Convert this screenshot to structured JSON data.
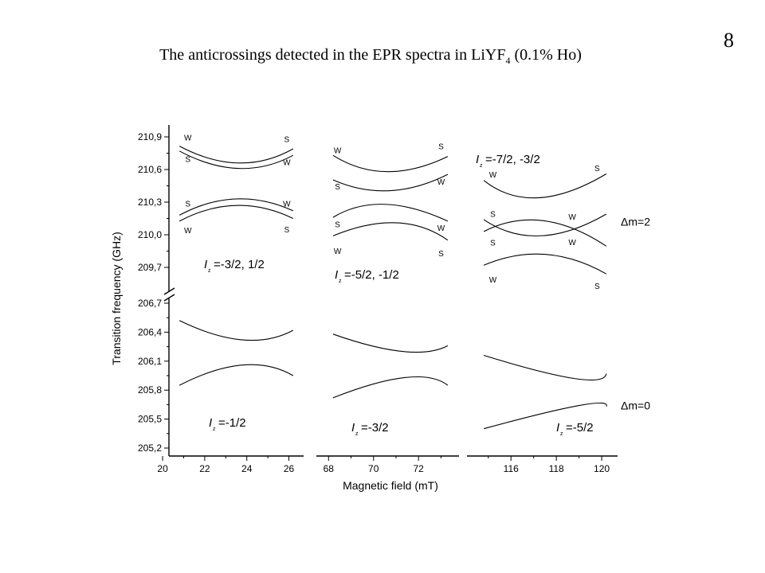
{
  "page": {
    "title_main": "The anticrossings detected in the EPR spectra in LiYF",
    "title_sub": "4",
    "title_tail": " (0.1% Ho)",
    "slide_number": "8"
  },
  "chart_data": {
    "type": "line",
    "ylabel": "Transition frequency (GHz)",
    "xlabel": "Magnetic field (mT)",
    "y_axis": {
      "upper_ticks": [
        209.7,
        210.0,
        210.3,
        210.6,
        210.9
      ],
      "upper_tick_labels": [
        "209,7",
        "210,0",
        "210,3",
        "210,6",
        "210,9"
      ],
      "lower_ticks": [
        205.2,
        205.5,
        205.8,
        206.1,
        206.4,
        206.7
      ],
      "lower_tick_labels": [
        "205,2",
        "205,5",
        "205,8",
        "206,1",
        "206,4",
        "206,7"
      ],
      "axis_break": true
    },
    "panels": [
      {
        "xlim": [
          20.3,
          26.7
        ],
        "xticks": [
          20,
          22,
          24,
          26
        ],
        "xtick_labels": [
          "20",
          "22",
          "24",
          "26"
        ],
        "upper_label": {
          "prefix": "I",
          "sub": "z",
          "text": "=-3/2, 1/2"
        },
        "lower_label": {
          "prefix": "I",
          "sub": "z",
          "text": "=-1/2"
        },
        "upper_series": [
          {
            "x": [
              20.8,
              23.6,
              26.2
            ],
            "y": [
              210.815,
              210.66,
              210.79
            ]
          },
          {
            "x": [
              20.8,
              23.6,
              26.2
            ],
            "y": [
              210.77,
              210.61,
              210.73
            ]
          },
          {
            "x": [
              20.8,
              23.5,
              26.2
            ],
            "y": [
              210.18,
              210.33,
              210.22
            ]
          },
          {
            "x": [
              20.8,
              23.5,
              26.2
            ],
            "y": [
              210.125,
              210.27,
              210.15
            ]
          }
        ],
        "lower_series": [
          {
            "x": [
              20.8,
              23.8,
              26.2
            ],
            "y": [
              206.52,
              206.32,
              206.42
            ]
          },
          {
            "x": [
              20.8,
              23.8,
              26.2
            ],
            "y": [
              205.85,
              206.06,
              205.95
            ]
          }
        ],
        "markers": [
          {
            "text": "W",
            "x": 21.2,
            "y": 210.895
          },
          {
            "text": "S",
            "x": 21.2,
            "y": 210.7
          },
          {
            "text": "S",
            "x": 25.9,
            "y": 210.88
          },
          {
            "text": "W",
            "x": 25.9,
            "y": 210.67
          },
          {
            "text": "S",
            "x": 21.2,
            "y": 210.29
          },
          {
            "text": "W",
            "x": 21.2,
            "y": 210.045
          },
          {
            "text": "W",
            "x": 25.9,
            "y": 210.29
          },
          {
            "text": "S",
            "x": 25.9,
            "y": 210.05
          }
        ]
      },
      {
        "xlim": [
          67.6,
          73.8
        ],
        "xticks": [
          68,
          70,
          72
        ],
        "xtick_labels": [
          "68",
          "70",
          "72"
        ],
        "upper_label": {
          "prefix": "I",
          "sub": "z",
          "text": "=-5/2, -1/2"
        },
        "lower_label": {
          "prefix": "I",
          "sub": "z",
          "text": "=-3/2"
        },
        "upper_series": [
          {
            "x": [
              68.2,
              70.6,
              73.3
            ],
            "y": [
              210.73,
              210.58,
              210.72
            ]
          },
          {
            "x": [
              68.2,
              70.7,
              73.3
            ],
            "y": [
              210.505,
              210.405,
              210.555
            ]
          },
          {
            "x": [
              68.2,
              70.5,
              73.3
            ],
            "y": [
              210.16,
              210.28,
              210.125
            ]
          },
          {
            "x": [
              68.2,
              71.0,
              73.3
            ],
            "y": [
              209.99,
              210.11,
              209.95
            ]
          }
        ],
        "lower_series": [
          {
            "x": [
              68.2,
              71.3,
              73.3
            ],
            "y": [
              206.38,
              206.2,
              206.26
            ]
          },
          {
            "x": [
              68.2,
              71.4,
              73.3
            ],
            "y": [
              205.72,
              205.93,
              205.85
            ]
          }
        ],
        "markers": [
          {
            "text": "W",
            "x": 68.4,
            "y": 210.78
          },
          {
            "text": "S",
            "x": 73.0,
            "y": 210.815
          },
          {
            "text": "S",
            "x": 68.4,
            "y": 210.445
          },
          {
            "text": "W",
            "x": 73.0,
            "y": 210.49
          },
          {
            "text": "S",
            "x": 68.4,
            "y": 210.1
          },
          {
            "text": "W",
            "x": 73.0,
            "y": 210.065
          },
          {
            "text": "W",
            "x": 68.4,
            "y": 209.855
          },
          {
            "text": "S",
            "x": 73.0,
            "y": 209.83
          }
        ]
      },
      {
        "xlim": [
          114.2,
          120.7
        ],
        "xticks": [
          116,
          118,
          120
        ],
        "xtick_labels": [
          "116",
          "118",
          "120"
        ],
        "upper_label": {
          "prefix": "I",
          "sub": "z",
          "text": "=-7/2, -3/2"
        },
        "lower_label": {
          "prefix": "I",
          "sub": "z",
          "text": "=-5/2"
        },
        "upper_series": [
          {
            "x": [
              114.8,
              117.2,
              120.2
            ],
            "y": [
              210.5,
              210.34,
              210.56
            ]
          },
          {
            "x": [
              114.8,
              117.4,
              120.2
            ],
            "y": [
              210.03,
              210.13,
              209.895
            ]
          },
          {
            "x": [
              114.8,
              117.3,
              120.2
            ],
            "y": [
              210.14,
              209.99,
              210.19
            ]
          },
          {
            "x": [
              114.8,
              117.5,
              120.2
            ],
            "y": [
              209.72,
              209.82,
              209.64
            ]
          }
        ],
        "lower_series": [
          {
            "x": [
              114.8,
              118.8,
              120.2
            ],
            "y": [
              206.16,
              205.92,
              205.97
            ]
          },
          {
            "x": [
              114.8,
              119.0,
              120.2
            ],
            "y": [
              205.4,
              205.64,
              205.63
            ]
          }
        ],
        "markers": [
          {
            "text": "W",
            "x": 115.2,
            "y": 210.555
          },
          {
            "text": "S",
            "x": 119.8,
            "y": 210.615
          },
          {
            "text": "S",
            "x": 115.2,
            "y": 210.195
          },
          {
            "text": "W",
            "x": 118.7,
            "y": 210.17
          },
          {
            "text": "S",
            "x": 115.2,
            "y": 209.93
          },
          {
            "text": "W",
            "x": 118.7,
            "y": 209.935
          },
          {
            "text": "W",
            "x": 115.2,
            "y": 209.59
          },
          {
            "text": "S",
            "x": 119.8,
            "y": 209.53
          }
        ]
      }
    ],
    "annotations": [
      {
        "text": "Δm=2",
        "band": "upper",
        "y": 210.12
      },
      {
        "text": "Δm=0",
        "band": "lower",
        "y": 205.64
      }
    ]
  }
}
